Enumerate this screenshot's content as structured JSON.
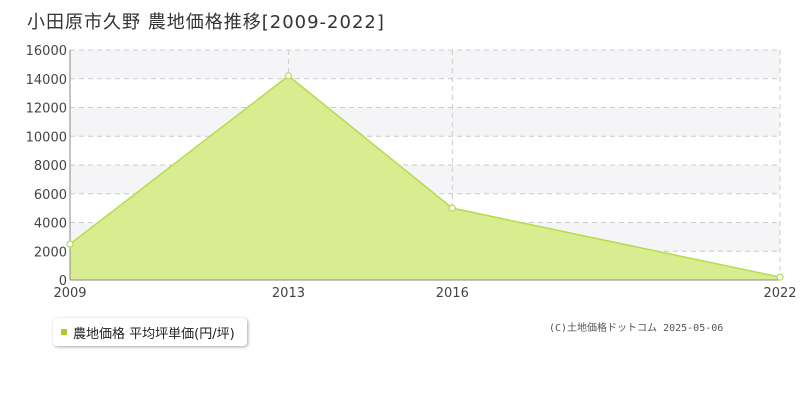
{
  "chart_data": {
    "type": "area",
    "title": "小田原市久野 農地価格推移[2009-2022]",
    "x": [
      2009,
      2013,
      2016,
      2022
    ],
    "xticks": [
      "2009",
      "2013",
      "2016",
      "2022"
    ],
    "xlim": [
      2009,
      2022
    ],
    "series": [
      {
        "name": "農地価格 平均坪単価(円/坪)",
        "values": [
          2500,
          14200,
          5000,
          200
        ]
      }
    ],
    "ylim": [
      0,
      16000
    ],
    "yticks": [
      "0",
      "2000",
      "4000",
      "6000",
      "8000",
      "10000",
      "12000",
      "14000",
      "16000"
    ],
    "grid": true,
    "legend_position": "bottom-left",
    "colors": {
      "fill": "#d9ec8f",
      "line": "#b5dc4e",
      "legend": "#a6cc2e",
      "band": "#f5f5f7",
      "grid": "#cccccc"
    }
  },
  "footer": {
    "credit": "(C)土地価格ドットコム 2025-05-06"
  }
}
